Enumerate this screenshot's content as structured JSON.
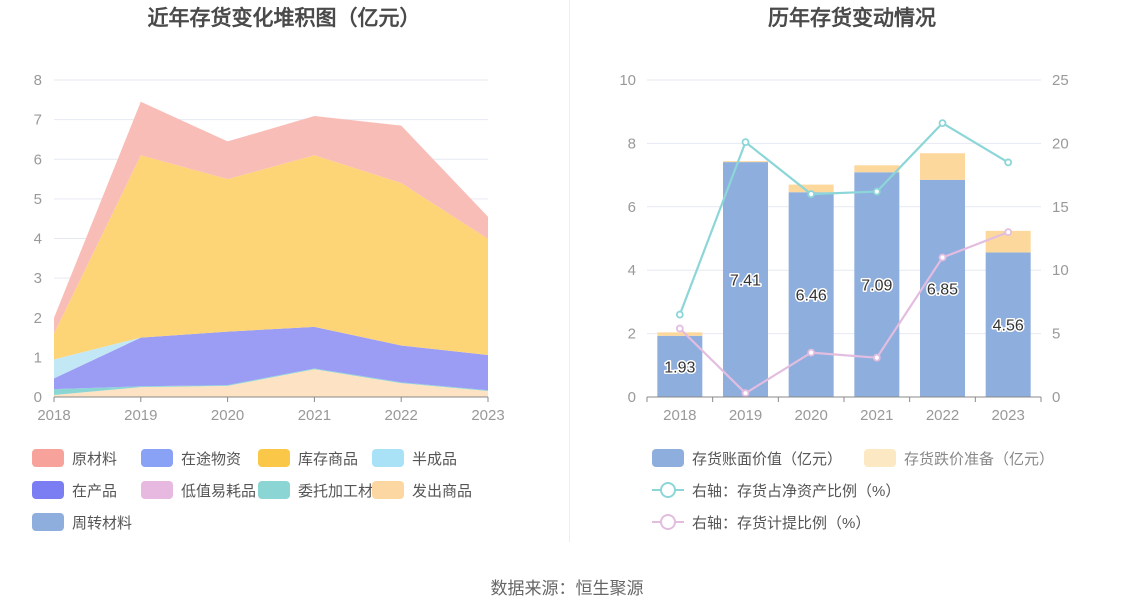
{
  "footer": {
    "source": "数据来源：恒生聚源"
  },
  "left_chart": {
    "title": "近年存货变化堆积图（亿元）",
    "legend": [
      {
        "name": "原材料",
        "color": "#f7a39b"
      },
      {
        "name": "在途物资",
        "color": "#8aa2f5"
      },
      {
        "name": "库存商品",
        "color": "#fbc748"
      },
      {
        "name": "半成品",
        "color": "#a9e1f7"
      },
      {
        "name": "在产品",
        "color": "#7b7ef2"
      },
      {
        "name": "低值易耗品",
        "color": "#e7b9e0"
      },
      {
        "name": "委托加工材料",
        "color": "#8bd6d5"
      },
      {
        "name": "发出商品",
        "color": "#fdd7a1"
      },
      {
        "name": "周转材料",
        "color": "#8eaedd"
      }
    ]
  },
  "right_chart": {
    "title": "历年存货变动情况",
    "legend": [
      {
        "name": "存货账面价值（亿元）",
        "color": "#8eaedd",
        "kind": "bar"
      },
      {
        "name": "存货跌价准备（亿元）",
        "color": "#fde8c4",
        "kind": "bar"
      },
      {
        "name": "右轴：存货占净资产比例（%）",
        "color": "#8dd6d8",
        "kind": "line"
      },
      {
        "name": "右轴：存货计提比例（%）",
        "color": "#e3bde0",
        "kind": "line"
      }
    ]
  },
  "chart_data": [
    {
      "type": "area",
      "stacked": true,
      "title": "近年存货变化堆积图（亿元）",
      "x": [
        "2018",
        "2019",
        "2020",
        "2021",
        "2022",
        "2023"
      ],
      "ylim": [
        0,
        8
      ],
      "yticks": [
        0,
        1,
        2,
        3,
        4,
        5,
        6,
        7,
        8
      ],
      "grid": true,
      "legend_position": "bottom",
      "series": [
        {
          "name": "发出商品",
          "color": "#fde3c3",
          "values": [
            0.05,
            0.25,
            0.28,
            0.7,
            0.35,
            0.15
          ]
        },
        {
          "name": "委托加工材料",
          "color": "#8bd6d5",
          "values": [
            0.15,
            0.02,
            0.02,
            0.02,
            0.02,
            0.02
          ]
        },
        {
          "name": "在产品",
          "color": "#9b9df5",
          "values": [
            0.27,
            1.23,
            1.35,
            1.05,
            0.93,
            0.89
          ]
        },
        {
          "name": "半成品",
          "color": "#c2e8f6",
          "values": [
            0.48,
            0.0,
            0.0,
            0.0,
            0.0,
            0.0
          ]
        },
        {
          "name": "库存商品",
          "color": "#fdd577",
          "values": [
            0.65,
            4.6,
            3.85,
            4.33,
            4.1,
            2.93
          ]
        },
        {
          "name": "原材料",
          "color": "#f9bdb8",
          "values": [
            0.4,
            1.35,
            0.95,
            0.99,
            1.45,
            0.56
          ]
        }
      ]
    },
    {
      "type": "bar",
      "stacked": true,
      "title": "历年存货变动情况",
      "categories": [
        "2018",
        "2019",
        "2020",
        "2021",
        "2022",
        "2023"
      ],
      "ylim": [
        0,
        10
      ],
      "yticks": [
        0,
        2,
        4,
        6,
        8,
        10
      ],
      "y2lim": [
        0,
        25
      ],
      "y2ticks": [
        0,
        5,
        10,
        15,
        20,
        25
      ],
      "grid": true,
      "legend_position": "bottom",
      "series": [
        {
          "name": "存货账面价值（亿元）",
          "type": "bar",
          "axis": "left",
          "color": "#8eaedd",
          "values": [
            1.93,
            7.41,
            6.46,
            7.09,
            6.85,
            4.56
          ],
          "labels": [
            "1.93",
            "7.41",
            "6.46",
            "7.09",
            "6.85",
            "4.56"
          ]
        },
        {
          "name": "存货跌价准备（亿元）",
          "type": "bar",
          "axis": "left",
          "color": "#fdd89d",
          "values": [
            0.11,
            0.03,
            0.24,
            0.22,
            0.84,
            0.68
          ]
        },
        {
          "name": "右轴：存货占净资产比例（%）",
          "type": "line",
          "axis": "right",
          "color": "#8dd6d8",
          "values": [
            6.5,
            20.1,
            16.0,
            16.2,
            21.6,
            18.5
          ]
        },
        {
          "name": "右轴：存货计提比例（%）",
          "type": "line",
          "axis": "right",
          "color": "#e3bde0",
          "values": [
            5.4,
            0.3,
            3.5,
            3.1,
            11.0,
            13.0
          ]
        }
      ]
    }
  ]
}
